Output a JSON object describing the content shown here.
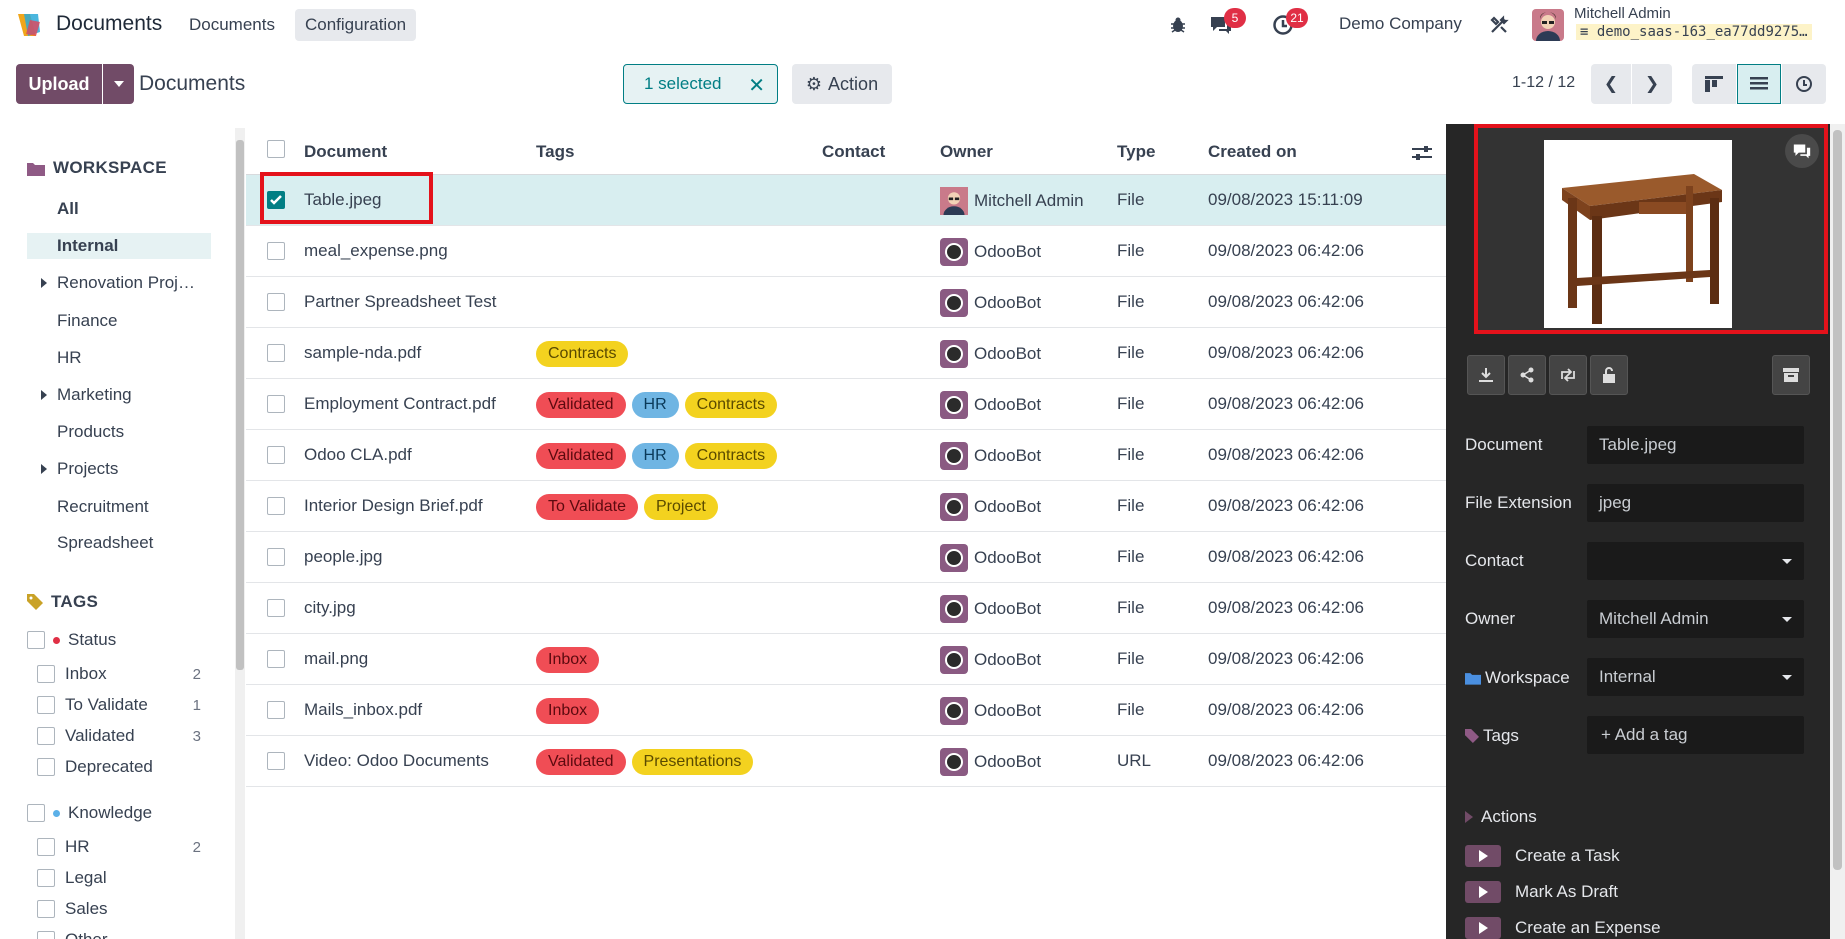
{
  "navbar": {
    "app_title": "Documents",
    "menu": [
      "Documents",
      "Configuration"
    ],
    "messages_count": "5",
    "activities_count": "21",
    "company": "Demo Company",
    "user_name": "Mitchell Admin",
    "user_db": "demo_saas-163_ea77dd9275…"
  },
  "control": {
    "upload_label": "Upload",
    "breadcrumb": "Documents",
    "selected_label": "1 selected",
    "action_label": "Action",
    "pager": "1-12 / 12"
  },
  "sidebar": {
    "workspace_title": "WORKSPACE",
    "workspaces": [
      {
        "label": "All"
      },
      {
        "label": "Internal"
      },
      {
        "label": "Renovation Proj…"
      },
      {
        "label": "Finance"
      },
      {
        "label": "HR"
      },
      {
        "label": "Marketing"
      },
      {
        "label": "Products"
      },
      {
        "label": "Projects"
      },
      {
        "label": "Recruitment"
      },
      {
        "label": "Spreadsheet"
      }
    ],
    "tags_title": "TAGS",
    "status_group": "Status",
    "status_tags": [
      {
        "label": "Inbox",
        "count": "2"
      },
      {
        "label": "To Validate",
        "count": "1"
      },
      {
        "label": "Validated",
        "count": "3"
      },
      {
        "label": "Deprecated",
        "count": ""
      }
    ],
    "knowledge_group": "Knowledge",
    "knowledge_tags": [
      {
        "label": "HR",
        "count": "2"
      },
      {
        "label": "Legal",
        "count": ""
      },
      {
        "label": "Sales",
        "count": ""
      },
      {
        "label": "Other",
        "count": ""
      }
    ]
  },
  "list": {
    "columns": [
      "Document",
      "Tags",
      "Contact",
      "Owner",
      "Type",
      "Created on"
    ],
    "rows": [
      {
        "name": "Table.jpeg",
        "owner": "Mitchell Admin",
        "type": "File",
        "created": "09/08/2023 15:11:09"
      },
      {
        "name": "meal_expense.png",
        "owner": "OdooBot",
        "type": "File",
        "created": "09/08/2023 06:42:06"
      },
      {
        "name": "Partner Spreadsheet Test",
        "owner": "OdooBot",
        "type": "File",
        "created": "09/08/2023 06:42:06"
      },
      {
        "name": "sample-nda.pdf",
        "owner": "OdooBot",
        "type": "File",
        "created": "09/08/2023 06:42:06"
      },
      {
        "name": "Employment Contract.pdf",
        "owner": "OdooBot",
        "type": "File",
        "created": "09/08/2023 06:42:06"
      },
      {
        "name": "Odoo CLA.pdf",
        "owner": "OdooBot",
        "type": "File",
        "created": "09/08/2023 06:42:06"
      },
      {
        "name": "Interior Design Brief.pdf",
        "owner": "OdooBot",
        "type": "File",
        "created": "09/08/2023 06:42:06"
      },
      {
        "name": "people.jpg",
        "owner": "OdooBot",
        "type": "File",
        "created": "09/08/2023 06:42:06"
      },
      {
        "name": "city.jpg",
        "owner": "OdooBot",
        "type": "File",
        "created": "09/08/2023 06:42:06"
      },
      {
        "name": "mail.png",
        "owner": "OdooBot",
        "type": "File",
        "created": "09/08/2023 06:42:06"
      },
      {
        "name": "Mails_inbox.pdf",
        "owner": "OdooBot",
        "type": "File",
        "created": "09/08/2023 06:42:06"
      },
      {
        "name": "Video: Odoo Documents",
        "owner": "OdooBot",
        "type": "URL",
        "created": "09/08/2023 06:42:06"
      }
    ],
    "tags": {
      "contracts": "Contracts",
      "validated": "Validated",
      "hr": "HR",
      "to_validate": "To Validate",
      "project": "Project",
      "inbox": "Inbox",
      "presentations": "Presentations"
    }
  },
  "panel": {
    "labels": {
      "document": "Document",
      "extension": "File Extension",
      "contact": "Contact",
      "owner": "Owner",
      "workspace": "Workspace",
      "tags": "Tags"
    },
    "values": {
      "document": "Table.jpeg",
      "extension": "jpeg",
      "contact": "",
      "owner": "Mitchell Admin",
      "workspace": "Internal",
      "tags_placeholder": "+ Add a tag"
    },
    "actions_title": "Actions",
    "actions": [
      "Create a Task",
      "Mark As Draft",
      "Create an Expense"
    ]
  },
  "colors": {
    "brand": "#714b67",
    "teal": "#017e84",
    "highlight": "#e4121b"
  }
}
